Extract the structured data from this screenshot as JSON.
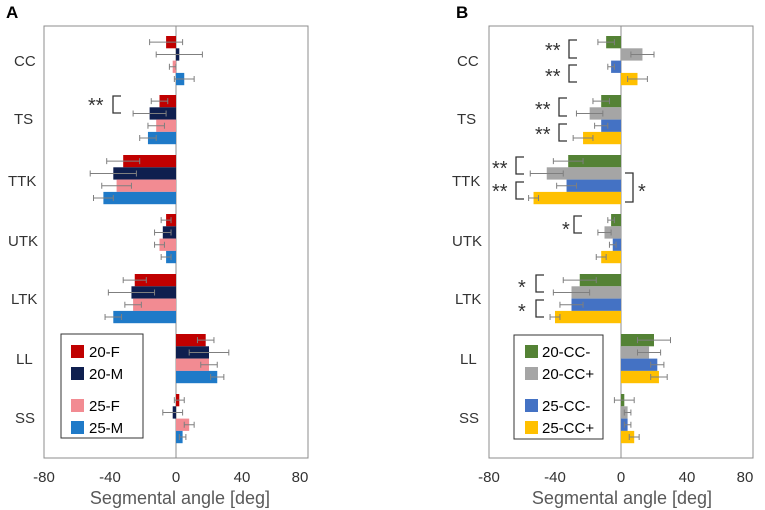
{
  "chart_data": [
    {
      "panel": "A",
      "type": "bar",
      "orientation": "horizontal",
      "xlabel": "Segmental angle [deg]",
      "xlim": [
        -80,
        80
      ],
      "xticks": [
        "-80",
        "-40",
        "0",
        "40",
        "80"
      ],
      "categories": [
        "CC",
        "TS",
        "TTK",
        "UTK",
        "LTK",
        "LL",
        "SS"
      ],
      "series": [
        {
          "name": "20-F",
          "color": "#c00000",
          "values": [
            -6,
            -10,
            -32,
            -6,
            -25,
            18,
            2
          ],
          "errors": [
            10,
            5,
            10,
            3,
            7,
            5,
            3
          ]
        },
        {
          "name": "20-M",
          "color": "#0f1f4f",
          "values": [
            2,
            -16,
            -38,
            -8,
            -27,
            20,
            -2
          ],
          "errors": [
            14,
            10,
            14,
            5,
            14,
            12,
            6
          ]
        },
        {
          "name": "25-F",
          "color": "#f28b92",
          "values": [
            -2,
            -12,
            -36,
            -10,
            -26,
            20,
            8
          ],
          "errors": [
            2,
            5,
            9,
            3,
            5,
            5,
            3
          ]
        },
        {
          "name": "25-M",
          "color": "#1f7ac8",
          "values": [
            5,
            -17,
            -44,
            -6,
            -38,
            25,
            4
          ],
          "errors": [
            6,
            5,
            6,
            3,
            5,
            4,
            2
          ]
        }
      ],
      "significance": [
        {
          "category": "TS",
          "pair": [
            "20-F",
            "20-M"
          ],
          "label": "**"
        }
      ],
      "legend": [
        "20-F",
        "20-M",
        "25-F",
        "25-M"
      ],
      "legend_position": "bottom-left"
    },
    {
      "panel": "B",
      "type": "bar",
      "orientation": "horizontal",
      "xlabel": "Segmental angle [deg]",
      "xlim": [
        -80,
        80
      ],
      "xticks": [
        "-80",
        "-40",
        "0",
        "40",
        "80"
      ],
      "categories": [
        "CC",
        "TS",
        "TTK",
        "UTK",
        "LTK",
        "LL",
        "SS"
      ],
      "series": [
        {
          "name": "20-CC-",
          "color": "#548235",
          "values": [
            -9,
            -12,
            -32,
            -6,
            -25,
            20,
            2
          ],
          "errors": [
            5,
            5,
            9,
            2,
            10,
            10,
            6
          ]
        },
        {
          "name": "20-CC+",
          "color": "#a5a5a5",
          "values": [
            13,
            -19,
            -45,
            -10,
            -30,
            17,
            4
          ],
          "errors": [
            7,
            8,
            10,
            4,
            11,
            7,
            2
          ]
        },
        {
          "name": "25-CC-",
          "color": "#4472c4",
          "values": [
            -6,
            -12,
            -33,
            -5,
            -30,
            22,
            4
          ],
          "errors": [
            2,
            4,
            6,
            2,
            7,
            4,
            2
          ]
        },
        {
          "name": "25-CC+",
          "color": "#ffc000",
          "values": [
            10,
            -23,
            -53,
            -12,
            -40,
            23,
            8
          ],
          "errors": [
            6,
            6,
            3,
            3,
            3,
            5,
            3
          ]
        }
      ],
      "significance": [
        {
          "category": "CC",
          "pair": [
            "20-CC-",
            "20-CC+"
          ],
          "label": "**"
        },
        {
          "category": "CC",
          "pair": [
            "25-CC-",
            "25-CC+"
          ],
          "label": "**"
        },
        {
          "category": "TS",
          "pair": [
            "20-CC-",
            "20-CC+"
          ],
          "label": "**"
        },
        {
          "category": "TS",
          "pair": [
            "25-CC-",
            "25-CC+"
          ],
          "label": "**"
        },
        {
          "category": "TTK",
          "pair": [
            "20-CC-",
            "20-CC+"
          ],
          "label": "**"
        },
        {
          "category": "TTK",
          "pair": [
            "25-CC-",
            "25-CC+"
          ],
          "label": "**"
        },
        {
          "category": "TTK",
          "pair": [
            "20-CC+",
            "25-CC+"
          ],
          "label": "*"
        },
        {
          "category": "UTK",
          "pair": [
            "20-CC-",
            "20-CC+"
          ],
          "label": "*"
        },
        {
          "category": "LTK",
          "pair": [
            "20-CC-",
            "20-CC+"
          ],
          "label": "*"
        },
        {
          "category": "LTK",
          "pair": [
            "25-CC-",
            "25-CC+"
          ],
          "label": "*"
        }
      ],
      "legend": [
        "20-CC-",
        "20-CC+",
        "25-CC-",
        "25-CC+"
      ],
      "legend_position": "bottom-left"
    }
  ]
}
